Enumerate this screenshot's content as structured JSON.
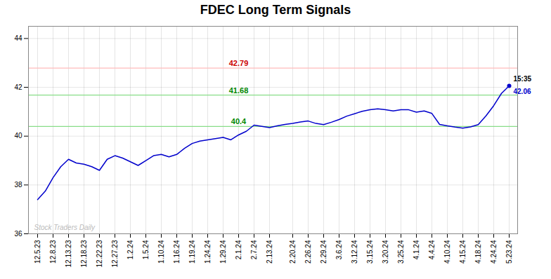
{
  "chart_data": {
    "type": "line",
    "title": "FDEC Long Term Signals",
    "categories": [
      "12.5.23",
      null,
      "12.8.23",
      null,
      "12.13.23",
      null,
      "12.18.23",
      null,
      "12.22.23",
      null,
      "12.27.23",
      null,
      "1.2.24",
      null,
      "1.5.24",
      null,
      "1.10.24",
      null,
      "1.16.24",
      null,
      "1.19.24",
      null,
      "1.24.24",
      null,
      "1.29.24",
      null,
      "2.1.24",
      null,
      "2.7.24",
      null,
      "2.13.24",
      null,
      null,
      "2.20.24",
      null,
      "2.26.24",
      null,
      "2.29.24",
      null,
      "3.6.24",
      null,
      "3.12.24",
      null,
      "3.15.24",
      null,
      "3.20.24",
      null,
      "3.25.24",
      null,
      "4.1.24",
      null,
      "4.4.24",
      null,
      "4.10.24",
      null,
      "4.15.24",
      null,
      "4.18.24",
      null,
      "4.24.24",
      null,
      "5.23.24"
    ],
    "values": [
      37.4,
      37.75,
      38.3,
      38.75,
      39.05,
      38.9,
      38.85,
      38.75,
      38.6,
      39.05,
      39.2,
      39.1,
      38.95,
      38.8,
      39.0,
      39.2,
      39.25,
      39.15,
      39.25,
      39.5,
      39.7,
      39.8,
      39.85,
      39.9,
      39.95,
      39.85,
      40.05,
      40.2,
      40.45,
      40.4,
      40.35,
      40.42,
      40.48,
      40.52,
      40.58,
      40.62,
      40.52,
      40.47,
      40.57,
      40.68,
      40.82,
      40.92,
      41.02,
      41.08,
      41.12,
      41.08,
      41.03,
      41.08,
      41.08,
      40.98,
      41.03,
      40.93,
      40.48,
      40.42,
      40.37,
      40.33,
      40.38,
      40.47,
      40.83,
      41.25,
      41.75,
      42.06
    ],
    "color": "#0000cc",
    "ylim": [
      36,
      44.5
    ],
    "yticks": [
      36,
      38,
      40,
      42,
      44
    ],
    "grid": true,
    "reference_lines": [
      {
        "value": 42.79,
        "label": "42.79",
        "color": "#ffbbbb",
        "label_color": "#cc0000"
      },
      {
        "value": 41.68,
        "label": "41.68",
        "color": "#88dd88",
        "label_color": "#008800"
      },
      {
        "value": 40.4,
        "label": "40.4",
        "color": "#88dd88",
        "label_color": "#008800"
      }
    ],
    "annotations": [
      {
        "text": "15:35",
        "color": "#000000"
      },
      {
        "text": "42.06",
        "color": "#0000cc"
      }
    ],
    "watermark": "Stock Traders Daily"
  }
}
